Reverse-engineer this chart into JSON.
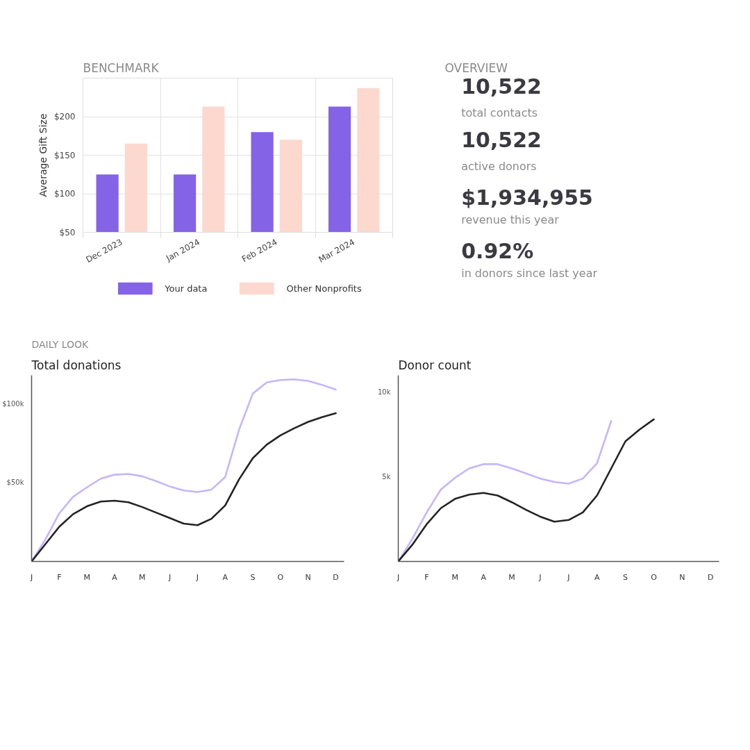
{
  "chart_data": [
    {
      "type": "bar",
      "title": "BENCHMARK",
      "ylabel": "Average Gift Size",
      "categories": [
        "Dec 2023",
        "Jan 2024",
        "Feb 2024",
        "Mar 2024"
      ],
      "series": [
        {
          "name": "Your data",
          "color": "#8463e6",
          "values": [
            125,
            125,
            180,
            213
          ]
        },
        {
          "name": "Other Nonprofits",
          "color": "#fdd8cf",
          "values": [
            165,
            213,
            170,
            237
          ]
        }
      ],
      "ylim": [
        50,
        250
      ],
      "yticks": [
        {
          "value": 50,
          "label": "$50"
        },
        {
          "value": 100,
          "label": "$100"
        },
        {
          "value": 150,
          "label": "$150"
        },
        {
          "value": 200,
          "label": "$200"
        }
      ],
      "grid": true,
      "legend": "bottom"
    },
    {
      "type": "other",
      "title": "OVERVIEW",
      "annotations": [
        "10,522",
        "total contacts",
        "10,522",
        "active donors",
        "$1,934,955",
        "revenue this year",
        "0.92%",
        "in donors since last year"
      ]
    },
    {
      "type": "line",
      "title": "Total donations",
      "annotations": [
        "DAILY LOOK"
      ],
      "categories": [
        "J",
        null,
        "F",
        null,
        "M",
        null,
        "A",
        null,
        "M",
        null,
        "J",
        null,
        "J",
        null,
        "A",
        null,
        "S",
        null,
        "O",
        null,
        "N",
        null,
        "D"
      ],
      "series": [
        {
          "color": "#c6b5fa",
          "values": [
            0,
            14000,
            30500,
            41000,
            47000,
            52500,
            55000,
            55500,
            54000,
            51000,
            47500,
            45000,
            44000,
            45500,
            53500,
            83500,
            106500,
            113500,
            115000,
            115500,
            114500,
            112000,
            109000
          ]
        },
        {
          "color": "#232323",
          "values": [
            0,
            11000,
            22000,
            30000,
            35000,
            38000,
            38500,
            37500,
            34500,
            31000,
            27500,
            24000,
            23000,
            27000,
            35500,
            52000,
            65500,
            74000,
            80000,
            84500,
            88500,
            91500,
            94000
          ]
        }
      ],
      "ylim": [
        0,
        118000
      ],
      "yticks": [
        {
          "value": 50000,
          "label": "$50k"
        },
        {
          "value": 100000,
          "label": "$100k"
        }
      ]
    },
    {
      "type": "line",
      "title": "Donor count",
      "categories": [
        "J",
        null,
        "F",
        null,
        "M",
        null,
        "A",
        null,
        "M",
        null,
        "J",
        null,
        "J",
        null,
        "A",
        null,
        "S",
        null,
        "O",
        null,
        "N",
        null,
        "D"
      ],
      "series": [
        {
          "color": "#c6b5fa",
          "values": [
            0,
            1350,
            2900,
            4250,
            4950,
            5500,
            5750,
            5750,
            5500,
            5200,
            4900,
            4700,
            4600,
            4900,
            5800,
            8300,
            null,
            null,
            null,
            null,
            null,
            null,
            null
          ]
        },
        {
          "color": "#232323",
          "values": [
            0,
            1000,
            2200,
            3150,
            3700,
            3950,
            4050,
            3900,
            3500,
            3050,
            2650,
            2350,
            2450,
            2900,
            3900,
            5500,
            7100,
            7800,
            8400,
            null,
            null,
            null,
            null
          ]
        }
      ],
      "ylim": [
        0,
        11000
      ],
      "yticks": [
        {
          "value": 5000,
          "label": "5k"
        },
        {
          "value": 10000,
          "label": "10k"
        }
      ]
    }
  ]
}
